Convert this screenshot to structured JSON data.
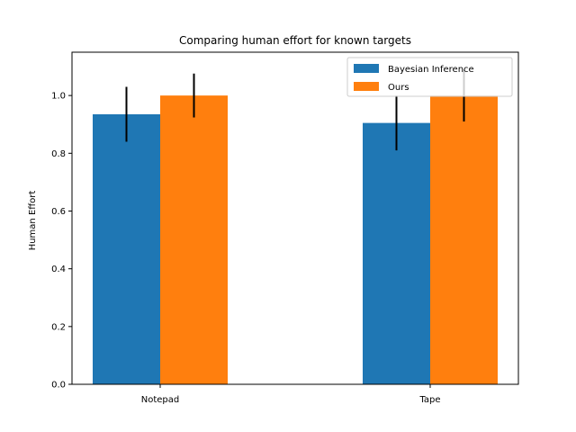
{
  "chart_data": {
    "type": "bar",
    "title": "Comparing human effort for known targets",
    "xlabel": "",
    "ylabel": "Human Effort",
    "categories": [
      "Notepad",
      "Tape"
    ],
    "series": [
      {
        "name": "Bayesian Inference",
        "values": [
          0.935,
          0.905
        ],
        "errors": [
          0.095,
          0.095
        ],
        "color": "#1f77b4"
      },
      {
        "name": "Ours",
        "values": [
          1.0,
          1.0
        ],
        "errors": [
          0.076,
          0.09
        ],
        "color": "#ff7f0e"
      }
    ],
    "ylim": [
      0,
      1.15
    ],
    "yticks": [
      "0.0",
      "0.2",
      "0.4",
      "0.6",
      "0.8",
      "1.0"
    ],
    "grid": false,
    "legend_position": "top-right",
    "error_bar_color": "#000000"
  }
}
